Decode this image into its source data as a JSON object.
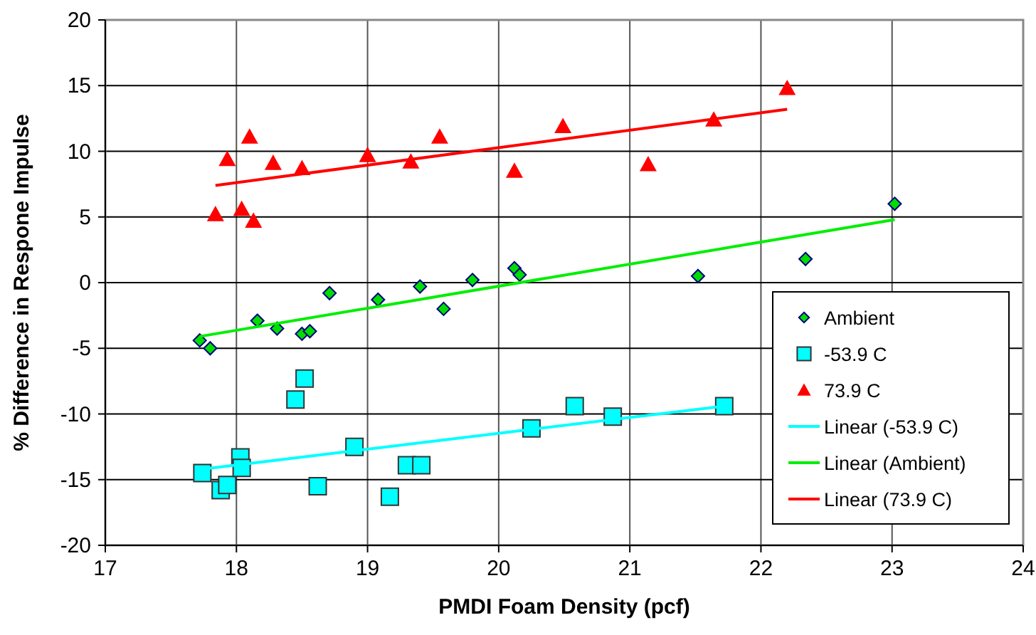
{
  "chart_data": {
    "type": "scatter",
    "xlabel": "PMDI Foam Density (pcf)",
    "ylabel": "% Difference in Respone Impulse",
    "xlim": [
      17,
      24
    ],
    "ylim": [
      -20,
      20
    ],
    "xticks": [
      17,
      18,
      19,
      20,
      21,
      22,
      23,
      24
    ],
    "yticks": [
      -20,
      -15,
      -10,
      -5,
      0,
      5,
      10,
      15,
      20
    ],
    "grid": true,
    "legend": "bottom right",
    "series": [
      {
        "name": "Ambient",
        "marker": "diamond",
        "color": "#00dd00",
        "x": [
          17.72,
          17.8,
          18.16,
          18.31,
          18.5,
          18.56,
          18.71,
          19.08,
          19.4,
          19.58,
          19.8,
          20.12,
          20.16,
          21.52,
          22.34,
          23.02
        ],
        "values": [
          -4.4,
          -5.0,
          -2.9,
          -3.5,
          -3.9,
          -3.7,
          -0.8,
          -1.3,
          -0.3,
          -2.0,
          0.2,
          1.1,
          0.6,
          0.5,
          1.8,
          6.0
        ]
      },
      {
        "name": "-53.9 C",
        "marker": "square",
        "color": "#00ffff",
        "x": [
          17.74,
          17.88,
          17.93,
          18.03,
          18.04,
          18.45,
          18.52,
          18.62,
          18.9,
          19.17,
          19.3,
          19.41,
          20.25,
          20.58,
          20.87,
          21.72
        ],
        "values": [
          -14.5,
          -15.8,
          -15.4,
          -13.3,
          -14.1,
          -8.9,
          -7.3,
          -15.5,
          -12.5,
          -16.3,
          -13.9,
          -13.9,
          -11.1,
          -9.4,
          -10.2,
          -9.4
        ]
      },
      {
        "name": "73.9 C",
        "marker": "triangle",
        "color": "#ff0000",
        "x": [
          17.84,
          17.93,
          18.04,
          18.1,
          18.13,
          18.28,
          18.5,
          19.0,
          19.33,
          19.55,
          20.12,
          20.49,
          21.14,
          21.64,
          22.2
        ],
        "values": [
          5.2,
          9.4,
          5.6,
          11.1,
          4.7,
          9.1,
          8.7,
          9.7,
          9.2,
          11.1,
          8.5,
          11.9,
          9.0,
          12.4,
          14.8
        ]
      },
      {
        "name": "Linear (-53.9 C)",
        "type": "line",
        "marker": "none",
        "line_style": "solid",
        "color": "#00ffff",
        "x": [
          17.74,
          21.72
        ],
        "values": [
          -14.2,
          -9.4
        ]
      },
      {
        "name": "Linear (Ambient)",
        "type": "line",
        "marker": "none",
        "line_style": "solid",
        "color": "#00ee00",
        "x": [
          17.72,
          23.02
        ],
        "values": [
          -4.1,
          4.8
        ]
      },
      {
        "name": "Linear (73.9 C)",
        "type": "line",
        "marker": "none",
        "line_style": "solid",
        "color": "#ff0000",
        "x": [
          17.84,
          22.2
        ],
        "values": [
          7.4,
          13.2
        ]
      }
    ]
  }
}
